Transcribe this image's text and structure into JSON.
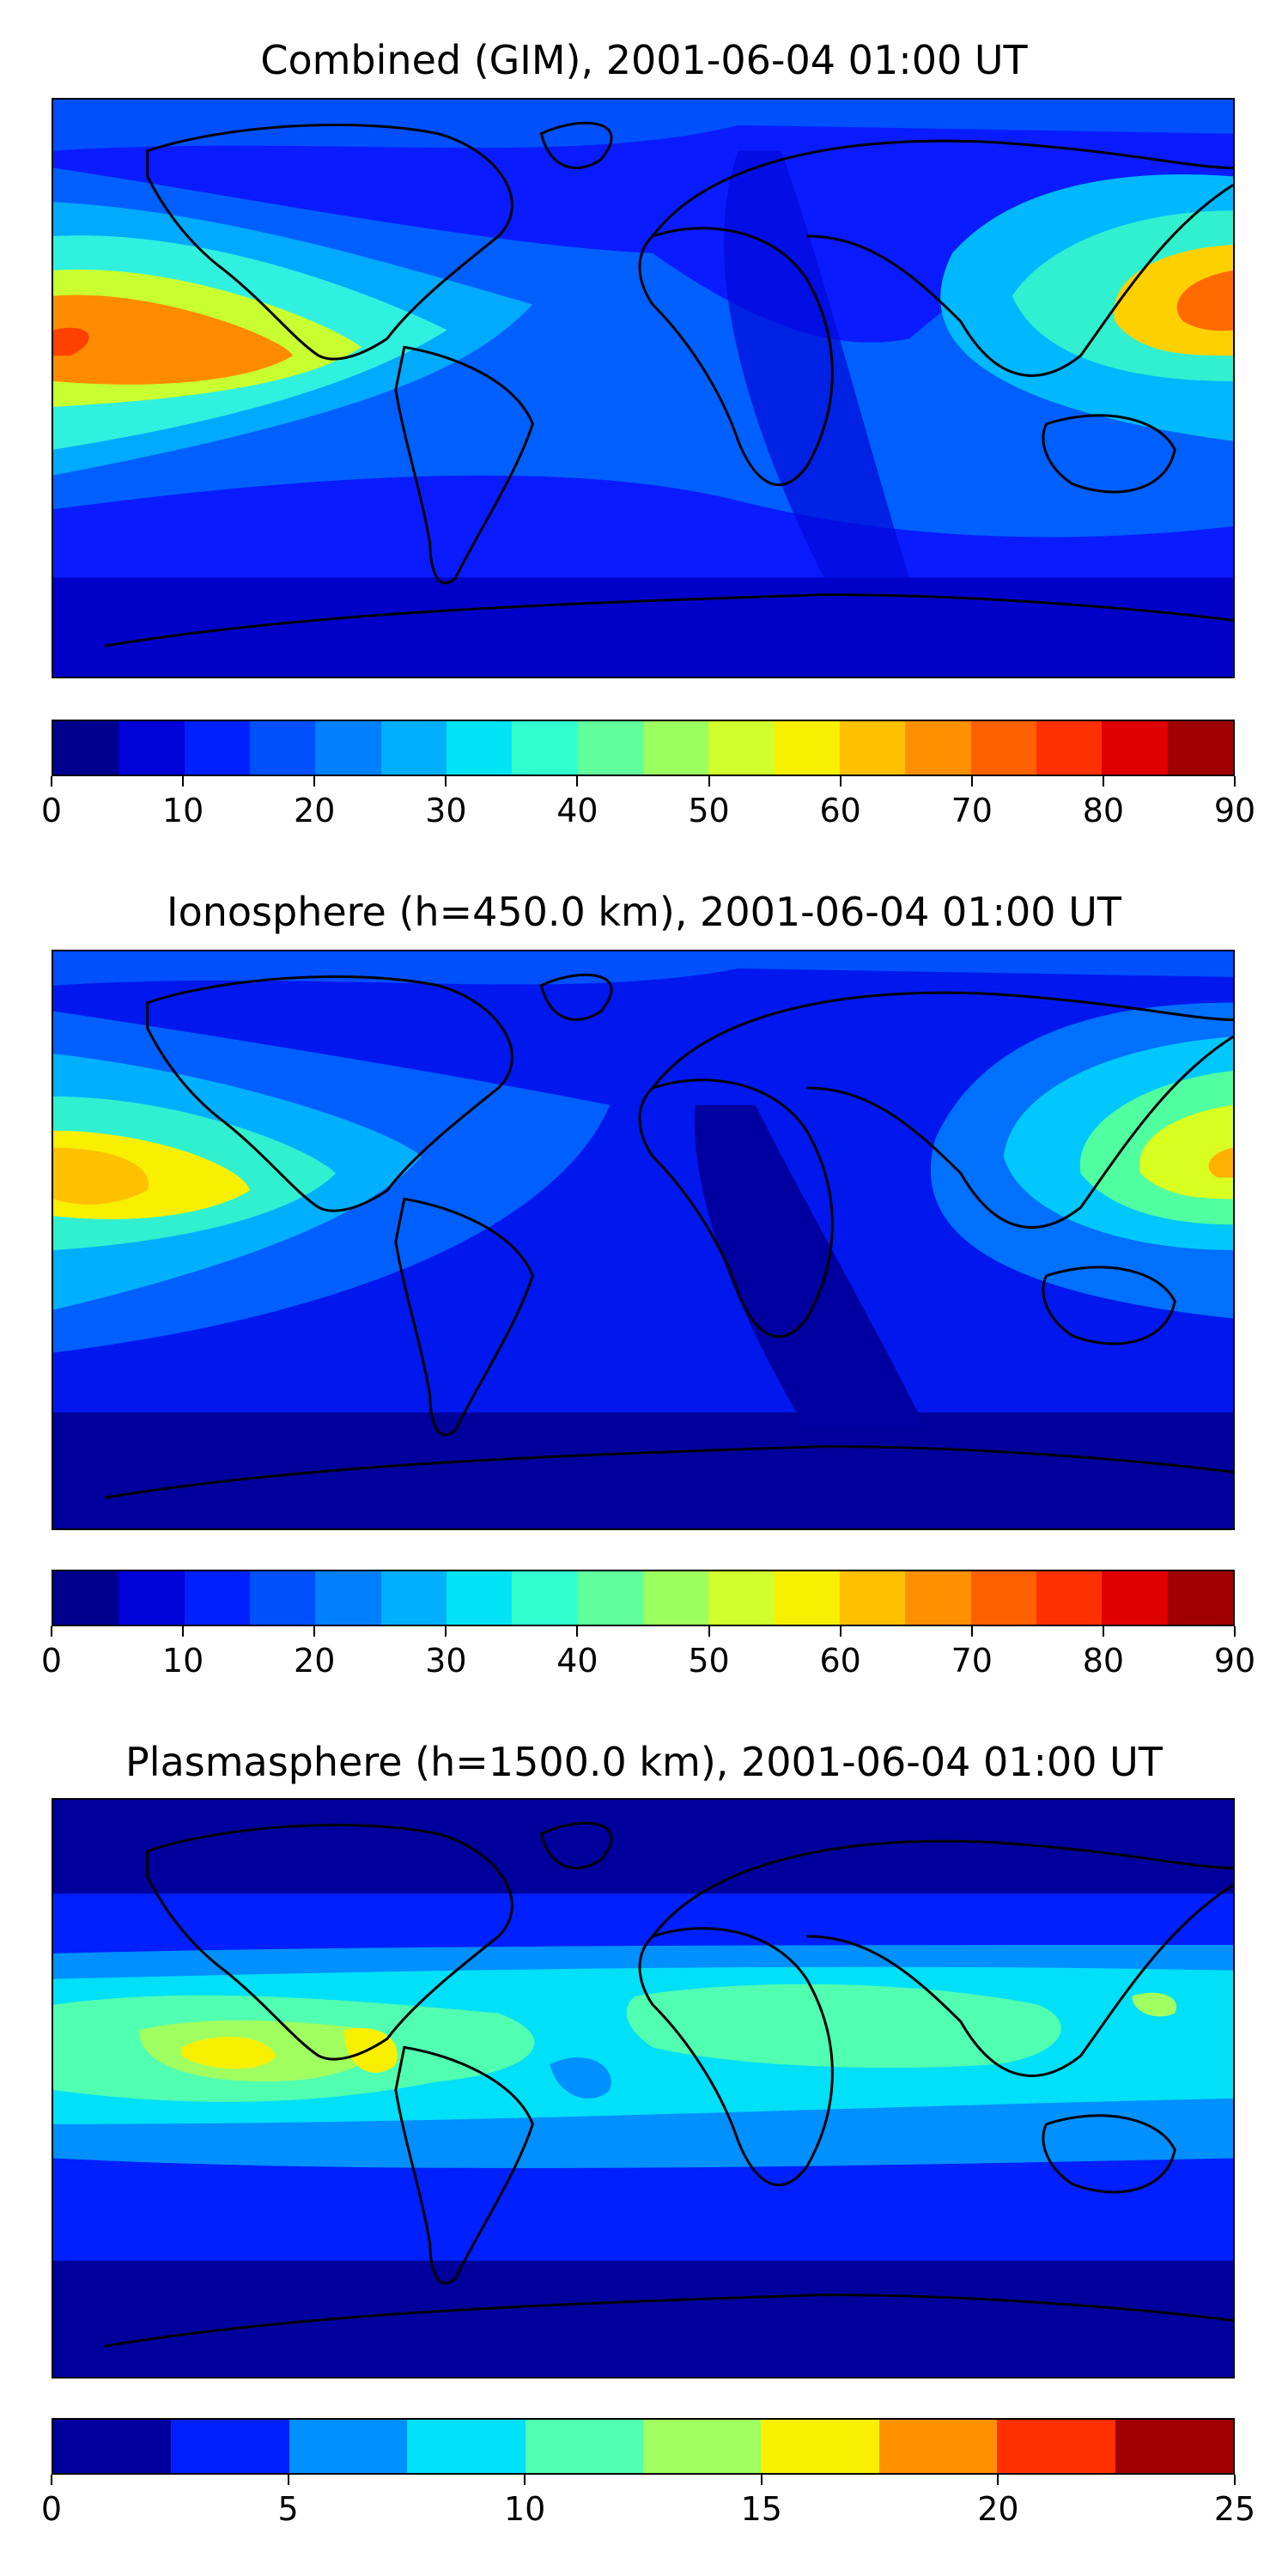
{
  "panels": [
    {
      "title": "Combined (GIM), 2001-06-04 01:00 UT",
      "tick_labels": [
        "0",
        "10",
        "20",
        "30",
        "40",
        "50",
        "60",
        "70",
        "80",
        "90"
      ],
      "colorbar_range": [
        0,
        90
      ],
      "colors": [
        "#00008f",
        "#0000d8",
        "#0020ff",
        "#0050ff",
        "#0080ff",
        "#00b0ff",
        "#00e4f8",
        "#30ffd0",
        "#60ff9c",
        "#9cff60",
        "#d0ff2c",
        "#f8f000",
        "#ffc000",
        "#ff9000",
        "#ff6000",
        "#ff3000",
        "#e00000",
        "#a00000"
      ]
    },
    {
      "title": "Ionosphere  (h=450.0 km), 2001-06-04 01:00 UT",
      "tick_labels": [
        "0",
        "10",
        "20",
        "30",
        "40",
        "50",
        "60",
        "70",
        "80",
        "90"
      ],
      "colorbar_range": [
        0,
        90
      ],
      "colors": [
        "#00008f",
        "#0000d8",
        "#0020ff",
        "#0050ff",
        "#0080ff",
        "#00b0ff",
        "#00e4f8",
        "#30ffd0",
        "#60ff9c",
        "#9cff60",
        "#d0ff2c",
        "#f8f000",
        "#ffc000",
        "#ff9000",
        "#ff6000",
        "#ff3000",
        "#e00000",
        "#a00000"
      ]
    },
    {
      "title": "Plasmasphere (h=1500.0 km), 2001-06-04 01:00 UT",
      "tick_labels": [
        "0",
        "5",
        "10",
        "15",
        "20",
        "25"
      ],
      "colorbar_range": [
        0,
        25
      ],
      "colors": [
        "#00009c",
        "#0020ff",
        "#0090ff",
        "#00e0f8",
        "#50ffb0",
        "#a0ff60",
        "#f8f000",
        "#ff9000",
        "#ff3000",
        "#a00000"
      ]
    }
  ]
}
